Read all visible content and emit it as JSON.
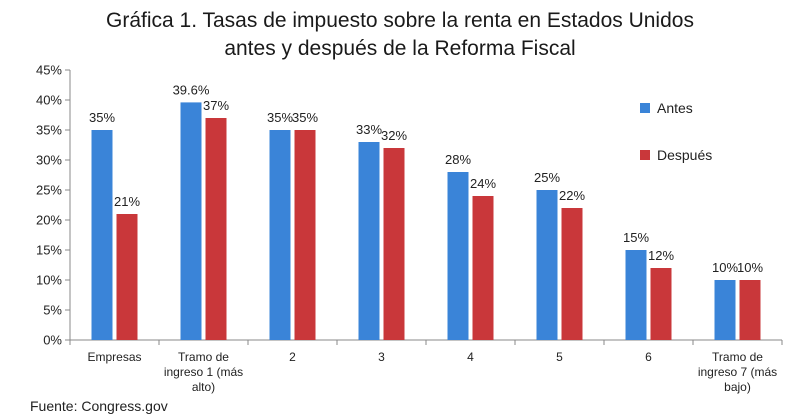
{
  "chart_data": {
    "type": "bar",
    "title": [
      "Gráfica 1. Tasas de impuesto sobre la renta en Estados Unidos",
      "antes y después de la Reforma Fiscal"
    ],
    "categories": [
      [
        "Empresas"
      ],
      [
        "Tramo de",
        "ingreso 1 (más",
        "alto)"
      ],
      [
        "2"
      ],
      [
        "3"
      ],
      [
        "4"
      ],
      [
        "5"
      ],
      [
        "6"
      ],
      [
        "Tramo de",
        "ingreso 7 (más",
        "bajo)"
      ]
    ],
    "series": [
      {
        "name": "Antes",
        "color": "#3a84d8",
        "values": [
          35,
          39.6,
          35,
          33,
          28,
          25,
          15,
          10
        ],
        "labels": [
          "35%",
          "39.6%",
          "35%",
          "33%",
          "28%",
          "25%",
          "15%",
          "10%"
        ]
      },
      {
        "name": "Después",
        "color": "#c9373a",
        "values": [
          21,
          37,
          35,
          32,
          24,
          22,
          12,
          10
        ],
        "labels": [
          "21%",
          "37%",
          "35%",
          "32%",
          "24%",
          "22%",
          "12%",
          "10%"
        ]
      }
    ],
    "yticks": [
      "0%",
      "5%",
      "10%",
      "15%",
      "20%",
      "25%",
      "30%",
      "35%",
      "40%",
      "45%"
    ],
    "ylim": [
      0,
      45
    ],
    "ystep": 5,
    "grid": false,
    "legend_position": "right"
  },
  "source": "Fuente: Congress.gov"
}
